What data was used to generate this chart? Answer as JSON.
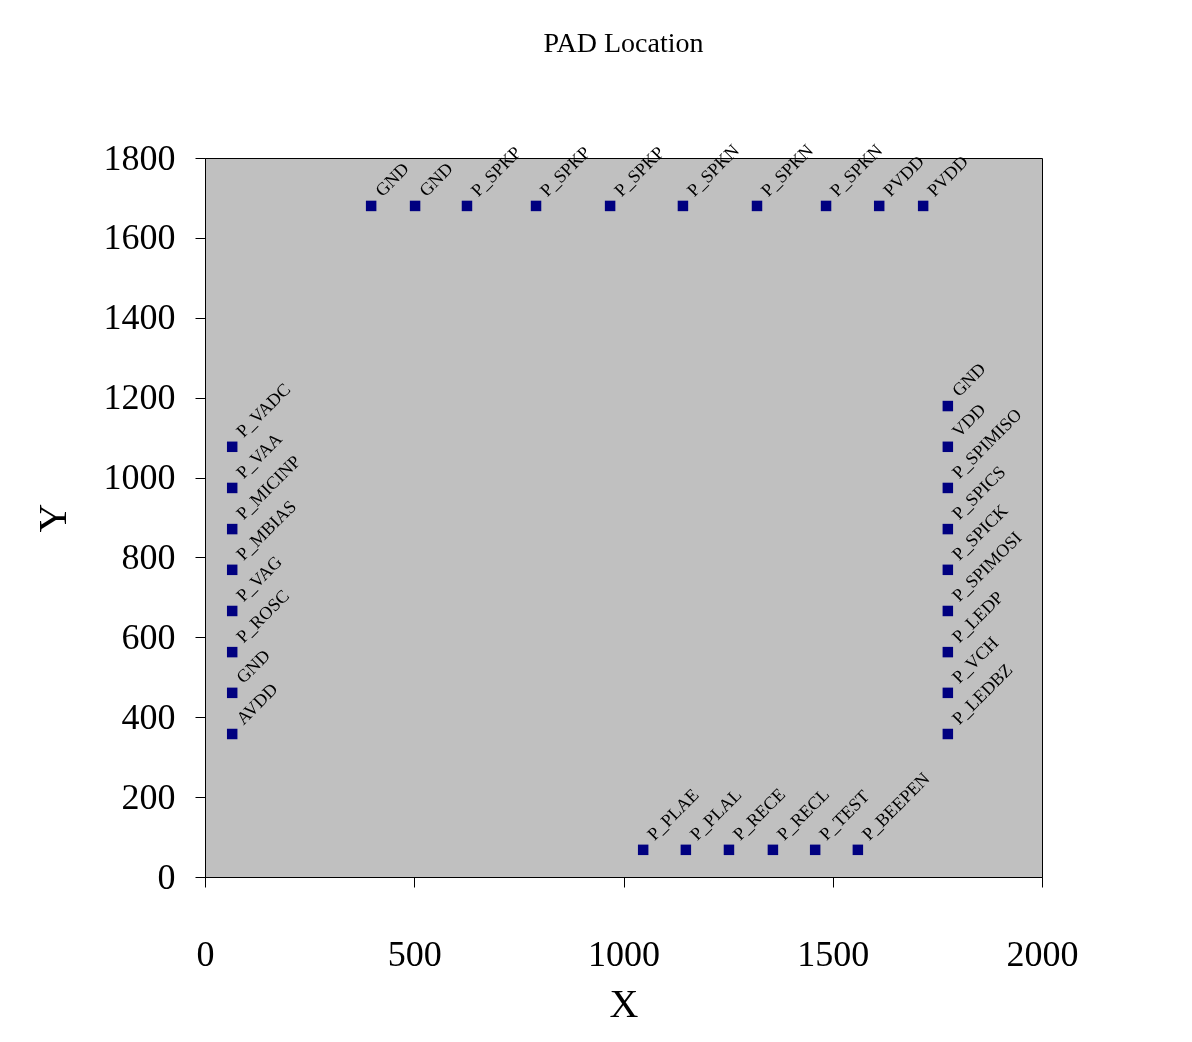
{
  "chart_data": {
    "type": "scatter",
    "title": "PAD Location",
    "xlabel": "X",
    "ylabel": "Y",
    "x": [
      397,
      502,
      626,
      791,
      968,
      1142,
      1319,
      1484,
      1611,
      1716,
      65,
      65,
      65,
      65,
      65,
      65,
      65,
      65,
      1775,
      1775,
      1775,
      1775,
      1775,
      1775,
      1775,
      1775,
      1775,
      1047,
      1149,
      1252,
      1357,
      1458,
      1560
    ],
    "values": [
      1680,
      1680,
      1680,
      1680,
      1680,
      1680,
      1680,
      1680,
      1680,
      1680,
      1077,
      974,
      871,
      769,
      666,
      563,
      461,
      358,
      1179,
      1077,
      974,
      871,
      769,
      666,
      563,
      461,
      358,
      68,
      68,
      68,
      68,
      68,
      68
    ],
    "color": "#000080",
    "marker": "square",
    "grid": false,
    "xlim": [
      0,
      2000
    ],
    "xticks": [
      0,
      500,
      1000,
      1500,
      2000
    ],
    "ylim": [
      0,
      1800
    ],
    "yticks": [
      0,
      200,
      400,
      600,
      800,
      1000,
      1200,
      1400,
      1600,
      1800
    ],
    "annotations": [
      {
        "text": "GND",
        "x": 397,
        "y": 1680
      },
      {
        "text": "GND",
        "x": 502,
        "y": 1680
      },
      {
        "text": "P_SPKP",
        "x": 626,
        "y": 1680
      },
      {
        "text": "P_SPKP",
        "x": 791,
        "y": 1680
      },
      {
        "text": "P_SPKP",
        "x": 968,
        "y": 1680
      },
      {
        "text": "P_SPKN",
        "x": 1142,
        "y": 1680
      },
      {
        "text": "P_SPKN",
        "x": 1319,
        "y": 1680
      },
      {
        "text": "P_SPKN",
        "x": 1484,
        "y": 1680
      },
      {
        "text": "PVDD",
        "x": 1611,
        "y": 1680
      },
      {
        "text": "PVDD",
        "x": 1716,
        "y": 1680
      },
      {
        "text": "P_VADC",
        "x": 65,
        "y": 1077
      },
      {
        "text": "P_VAA",
        "x": 65,
        "y": 974
      },
      {
        "text": "P_MICINP",
        "x": 65,
        "y": 871
      },
      {
        "text": "P_MBIAS",
        "x": 65,
        "y": 769
      },
      {
        "text": "P_VAG",
        "x": 65,
        "y": 666
      },
      {
        "text": "P_ROSC",
        "x": 65,
        "y": 563
      },
      {
        "text": "GND",
        "x": 65,
        "y": 461
      },
      {
        "text": "AVDD",
        "x": 65,
        "y": 358
      },
      {
        "text": "GND",
        "x": 1775,
        "y": 1179
      },
      {
        "text": "VDD",
        "x": 1775,
        "y": 1077
      },
      {
        "text": "P_SPIMISO",
        "x": 1775,
        "y": 974
      },
      {
        "text": "P_SPICS",
        "x": 1775,
        "y": 871
      },
      {
        "text": "P_SPICK",
        "x": 1775,
        "y": 769
      },
      {
        "text": "P_SPIMOSI",
        "x": 1775,
        "y": 666
      },
      {
        "text": "P_LEDP",
        "x": 1775,
        "y": 563
      },
      {
        "text": "P_VCH",
        "x": 1775,
        "y": 461
      },
      {
        "text": "P_LEDBZ",
        "x": 1775,
        "y": 358
      },
      {
        "text": "P_PLAE",
        "x": 1047,
        "y": 68
      },
      {
        "text": "P_PLAL",
        "x": 1149,
        "y": 68
      },
      {
        "text": "P_RECE",
        "x": 1252,
        "y": 68
      },
      {
        "text": "P_RECL",
        "x": 1357,
        "y": 68
      },
      {
        "text": "P_TEST",
        "x": 1458,
        "y": 68
      },
      {
        "text": "P_BEEPEN",
        "x": 1560,
        "y": 68
      }
    ]
  }
}
